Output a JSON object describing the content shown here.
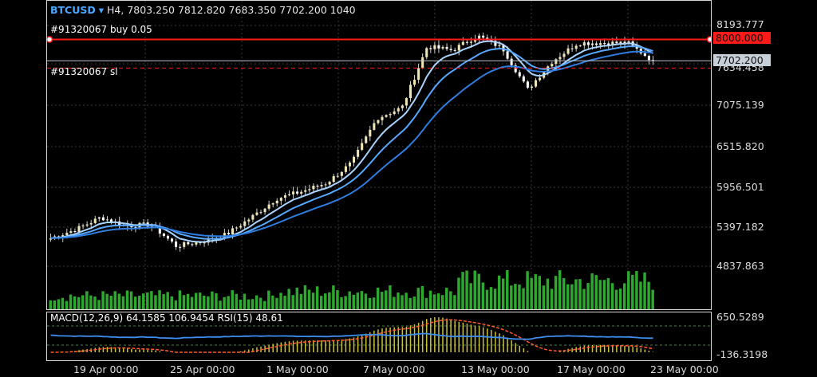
{
  "header": {
    "symbol": "BTCUSD",
    "arrow": "▾",
    "timeframe": "H4,",
    "ohlcv": "7803.250 7812.820 7683.350 7702.200 1040"
  },
  "orders": {
    "buy_label": "#91320067 buy 0.05",
    "sl_label": "#91320067 sl"
  },
  "price_axis": {
    "ticks": [
      "8193.777",
      "7075.139",
      "6515.820",
      "5956.501",
      "5397.182",
      "4837.863"
    ],
    "partial_tick": "7634.458",
    "order_level_tag": "8000.000",
    "current_price_tag": "7702.200"
  },
  "indicator": {
    "header": "MACD(12,26,9) 64.1585 106.9454 RSI(15) 48.61",
    "ticks": [
      "650.5289",
      "-136.3198"
    ]
  },
  "time_axis": {
    "ticks": [
      "19 Apr 00:00",
      "25 Apr 00:00",
      "1 May 00:00",
      "7 May 00:00",
      "13 May 00:00",
      "17 May 00:00",
      "23 May 00:00"
    ]
  },
  "colors": {
    "background": "#000000",
    "bull_candle": "#f0e6b4",
    "bear_candle": "#ffffff",
    "volume": "#2fa82f",
    "ma_fast": "#a9d4ff",
    "ma_mid": "#58a8ff",
    "ma_slow": "#2f7de0",
    "order_line": "#ff1a1a",
    "macd_hist": "#c9c23a",
    "macd_signal": "#ff5a2a",
    "rsi": "#3e8ef0"
  },
  "chart_data": {
    "type": "candlestick",
    "symbol": "BTCUSD",
    "timeframe": "H4",
    "ylim": [
      4837.863,
      8193.777
    ],
    "anchors": [
      {
        "date": "16 Apr",
        "close": 5230
      },
      {
        "date": "19 Apr",
        "close": 5350
      },
      {
        "date": "21 Apr",
        "close": 5520
      },
      {
        "date": "23 Apr",
        "close": 5400
      },
      {
        "date": "25 Apr",
        "close": 5420
      },
      {
        "date": "26 Apr",
        "close": 5120
      },
      {
        "date": "28 Apr",
        "close": 5180
      },
      {
        "date": "1 May",
        "close": 5280
      },
      {
        "date": "3 May",
        "close": 5520
      },
      {
        "date": "5 May",
        "close": 5780
      },
      {
        "date": "7 May",
        "close": 5880
      },
      {
        "date": "9 May",
        "close": 6000
      },
      {
        "date": "10 May",
        "close": 6280
      },
      {
        "date": "11 May",
        "close": 6900
      },
      {
        "date": "12 May",
        "close": 7050
      },
      {
        "date": "13 May",
        "close": 7900
      },
      {
        "date": "14 May",
        "close": 7850
      },
      {
        "date": "15 May",
        "close": 8050
      },
      {
        "date": "16 May",
        "close": 7880
      },
      {
        "date": "17 May",
        "close": 7300
      },
      {
        "date": "18 May",
        "close": 7700
      },
      {
        "date": "19 May",
        "close": 7950
      },
      {
        "date": "20 May",
        "close": 7950
      },
      {
        "date": "21 May",
        "close": 7950
      },
      {
        "date": "22 May",
        "close": 7702.2
      }
    ],
    "order_levels": {
      "buy": 8000.0,
      "stop_loss": 7600
    },
    "current_price": 7702.2
  }
}
